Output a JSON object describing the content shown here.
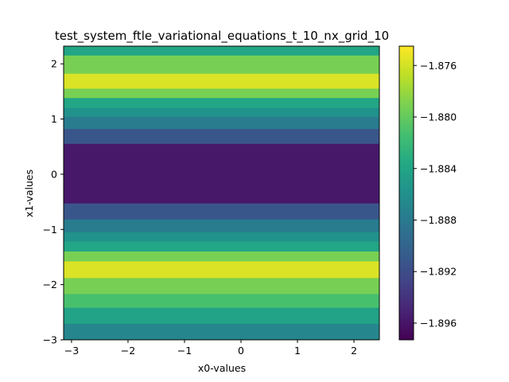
{
  "chart_data": {
    "type": "heatmap",
    "title": "test_system_ftle_variational_equations_t_10_nx_grid_10",
    "xlabel": "x0-values",
    "ylabel": "x1-values",
    "xlim": [
      -3.14,
      2.45
    ],
    "ylim": [
      -3.0,
      2.32
    ],
    "xticks": [
      -3,
      -2,
      -1,
      0,
      1,
      2
    ],
    "xtick_labels": [
      "−3",
      "−2",
      "−1",
      "0",
      "1",
      "2"
    ],
    "yticks": [
      -3,
      -2,
      -1,
      0,
      1,
      2
    ],
    "ytick_labels": [
      "−3",
      "−2",
      "−1",
      "0",
      "1",
      "2"
    ],
    "colormap": "viridis",
    "colorbar": {
      "min": -1.8973,
      "max": -1.8745,
      "ticks": [
        -1.896,
        -1.892,
        -1.888,
        -1.884,
        -1.88,
        -1.876
      ],
      "tick_labels": [
        "−1.896",
        "−1.892",
        "−1.888",
        "−1.884",
        "−1.880",
        "−1.876"
      ]
    },
    "rows_description": "values vary only along x1; each band spans the full x0 range",
    "bands": [
      {
        "y0": 2.15,
        "y1": 2.32,
        "value": -1.8838
      },
      {
        "y0": 1.82,
        "y1": 2.15,
        "value": -1.8792
      },
      {
        "y0": 1.55,
        "y1": 1.82,
        "value": -1.8757
      },
      {
        "y0": 1.38,
        "y1": 1.55,
        "value": -1.8792
      },
      {
        "y0": 1.2,
        "y1": 1.38,
        "value": -1.8838
      },
      {
        "y0": 1.04,
        "y1": 1.2,
        "value": -1.8858
      },
      {
        "y0": 0.82,
        "y1": 1.04,
        "value": -1.8878
      },
      {
        "y0": 0.55,
        "y1": 0.82,
        "value": -1.8912
      },
      {
        "y0": -0.53,
        "y1": 0.55,
        "value": -1.8958
      },
      {
        "y0": -0.82,
        "y1": -0.53,
        "value": -1.8912
      },
      {
        "y0": -1.05,
        "y1": -0.82,
        "value": -1.8878
      },
      {
        "y0": -1.22,
        "y1": -1.05,
        "value": -1.8858
      },
      {
        "y0": -1.4,
        "y1": -1.22,
        "value": -1.8838
      },
      {
        "y0": -1.58,
        "y1": -1.4,
        "value": -1.8792
      },
      {
        "y0": -1.88,
        "y1": -1.58,
        "value": -1.8757
      },
      {
        "y0": -2.17,
        "y1": -1.88,
        "value": -1.8792
      },
      {
        "y0": -2.42,
        "y1": -2.17,
        "value": -1.8812
      },
      {
        "y0": -2.71,
        "y1": -2.42,
        "value": -1.8842
      },
      {
        "y0": -3.0,
        "y1": -2.71,
        "value": -1.8868
      }
    ]
  }
}
